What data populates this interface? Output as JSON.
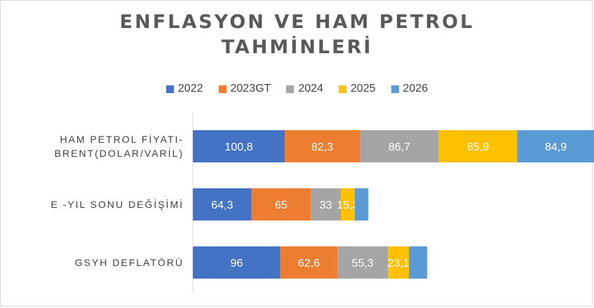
{
  "colors": {
    "s2022": "#4472c4",
    "s2023": "#ed7d31",
    "s2024": "#a5a5a5",
    "s2025": "#ffc000",
    "s2026": "#5b9bd5",
    "title": "#595959",
    "label": "#404040",
    "axis": "#d9d9d9"
  },
  "chart_data": {
    "type": "bar",
    "orientation": "horizontal",
    "stacked": true,
    "title": "ENFLASYON VE HAM PETROL TAHMİNLERİ",
    "title_lines": [
      "ENFLASYON  VE HAM PETROL",
      "TAHMİNLERİ"
    ],
    "legend_position": "top",
    "categories": [
      {
        "lines": [
          "HAM PETROL FİYATI-",
          "BRENT(DOLAR/VARİL)"
        ]
      },
      {
        "lines": [
          "E -YIL SONU DEĞİŞİMİ"
        ]
      },
      {
        "lines": [
          "GSYH DEFLATÖRÜ"
        ]
      }
    ],
    "series": [
      {
        "name": "2022",
        "color_key": "s2022",
        "values": [
          100.8,
          64.3,
          96
        ],
        "labels": [
          "100,8",
          "64,3",
          "96"
        ]
      },
      {
        "name": "2023GT",
        "color_key": "s2023",
        "values": [
          82.3,
          65,
          62.6
        ],
        "labels": [
          "82,3",
          "65",
          "62,6"
        ]
      },
      {
        "name": "2024",
        "color_key": "s2024",
        "values": [
          86.7,
          33,
          55.3
        ],
        "labels": [
          "86,7",
          "33",
          "55,3"
        ]
      },
      {
        "name": "2025",
        "color_key": "s2025",
        "values": [
          85.9,
          15.2,
          23.1
        ],
        "labels": [
          "85,9",
          "15,2",
          "23,1"
        ]
      },
      {
        "name": "2026",
        "color_key": "s2026",
        "values": [
          84.9,
          15,
          20
        ],
        "labels": [
          "84,9",
          "",
          ""
        ]
      }
    ]
  }
}
